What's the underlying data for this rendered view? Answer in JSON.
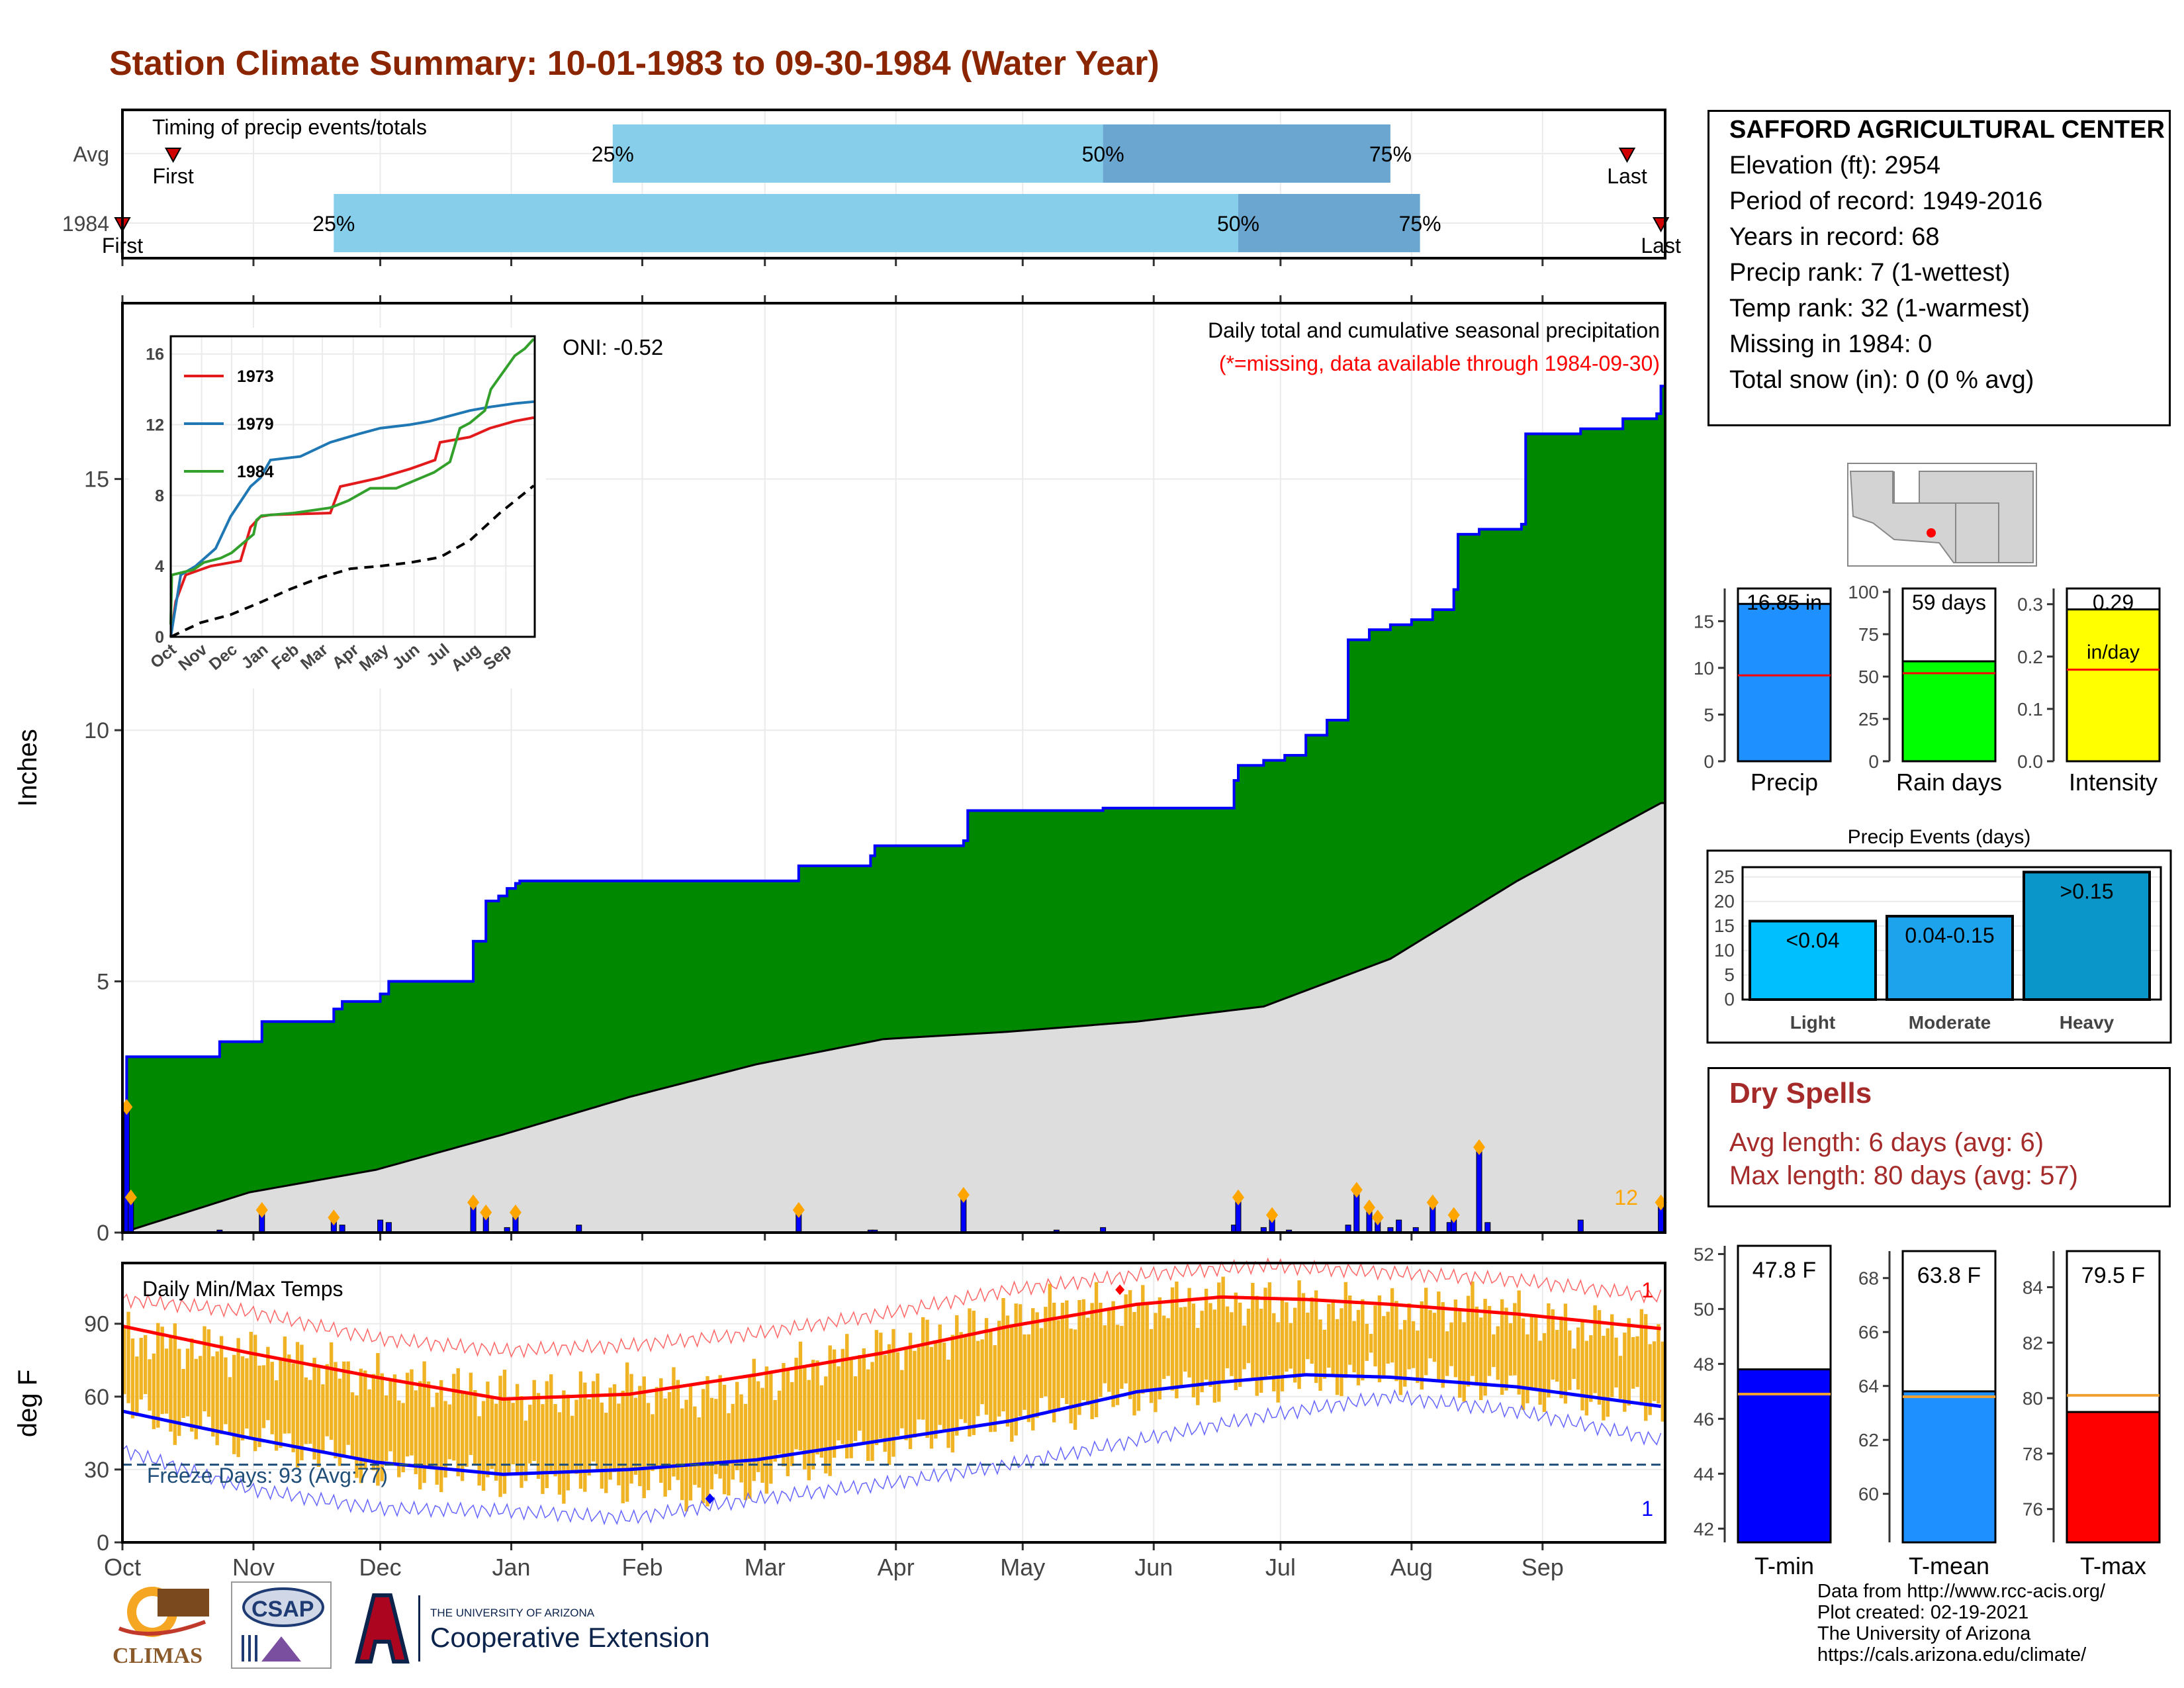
{
  "title": "Station Climate Summary: 10-01-1983 to 09-30-1984 (Water Year)",
  "colors": {
    "title": "#8b2500",
    "cum_fill": "#008800",
    "cum_line": "#0000ff",
    "normal_fill": "#dddddd",
    "daily_bar": "#0000ff",
    "marker": "#ffa500",
    "light_blue": "#87ceeb",
    "mid_blue": "#6aa6cf",
    "temp_bar": "#f0b323",
    "tmax_line": "#ff0000",
    "tmin_line": "#0000ff",
    "freeze": "#1f4e79",
    "dry_text": "#a52a2a",
    "precip_bar": "#1e90ff",
    "rain_bar": "#00ff00",
    "intensity_bar": "#ffff00"
  },
  "timing": {
    "title": "Timing of precip events/totals",
    "rows": [
      {
        "label": "Avg",
        "first_day": 12,
        "p25_day": 116,
        "p50_day": 232,
        "p75_day": 300,
        "last_day": 356,
        "first_label": "First",
        "last_label": "Last",
        "p25_label": "25%",
        "p50_label": "50%",
        "p75_label": "75%"
      },
      {
        "label": "1984",
        "first_day": 0,
        "p25_day": 50,
        "p50_day": 264,
        "p75_day": 307,
        "last_day": 364,
        "first_label": "First",
        "last_label": "Last",
        "p25_label": "25%",
        "p50_label": "50%",
        "p75_label": "75%"
      }
    ]
  },
  "precip_panel": {
    "ylabel": "Inches",
    "yticks": [
      0,
      5,
      10,
      15
    ],
    "ymax": 18.5,
    "caption1": "Daily total and cumulative seasonal precipitation",
    "caption2": "(*=missing, data available through 1984-09-30)",
    "oni": "ONI: -0.52",
    "count_label": "12"
  },
  "months": [
    "Oct",
    "Nov",
    "Dec",
    "Jan",
    "Feb",
    "Mar",
    "Apr",
    "May",
    "Jun",
    "Jul",
    "Aug",
    "Sep"
  ],
  "month_start_days": [
    0,
    31,
    61,
    92,
    123,
    152,
    183,
    213,
    244,
    274,
    305,
    336
  ],
  "chart_data": [
    {
      "type": "area",
      "name": "cumulative precipitation 1984",
      "x_days": [
        0,
        1,
        23,
        33,
        50,
        52,
        61,
        63,
        83,
        86,
        89,
        91,
        93,
        94,
        108,
        123,
        160,
        177,
        178,
        199,
        200,
        226,
        232,
        263,
        264,
        270,
        275,
        280,
        285,
        290,
        295,
        300,
        305,
        310,
        315,
        316,
        321,
        331,
        332,
        345,
        355,
        363,
        364
      ],
      "y_values": [
        0.7,
        3.5,
        3.8,
        4.2,
        4.45,
        4.6,
        4.75,
        5.0,
        5.8,
        6.6,
        6.7,
        6.85,
        6.95,
        7.0,
        7.0,
        7.0,
        7.3,
        7.5,
        7.7,
        7.8,
        8.4,
        8.4,
        8.45,
        9.0,
        9.3,
        9.4,
        9.5,
        9.9,
        10.2,
        11.8,
        12.0,
        12.1,
        12.2,
        12.4,
        12.8,
        13.9,
        14.0,
        14.1,
        15.9,
        16.0,
        16.2,
        16.3,
        16.85
      ]
    },
    {
      "type": "area",
      "name": "normal cumulative precipitation",
      "x_days": [
        0,
        30,
        60,
        90,
        120,
        150,
        180,
        210,
        240,
        270,
        300,
        330,
        364
      ],
      "y_values": [
        0.0,
        0.8,
        1.25,
        1.95,
        2.7,
        3.35,
        3.85,
        4.0,
        4.2,
        4.5,
        5.45,
        7.0,
        8.55
      ]
    },
    {
      "type": "bar",
      "name": "daily precipitation",
      "x_days": [
        1,
        2,
        23,
        33,
        50,
        52,
        61,
        63,
        83,
        86,
        91,
        93,
        108,
        160,
        177,
        178,
        199,
        221,
        232,
        263,
        264,
        270,
        272,
        276,
        290,
        292,
        295,
        297,
        300,
        302,
        306,
        310,
        314,
        315,
        321,
        323,
        345,
        364
      ],
      "y_values": [
        2.5,
        0.7,
        0.05,
        0.45,
        0.3,
        0.15,
        0.25,
        0.2,
        0.6,
        0.4,
        0.1,
        0.4,
        0.15,
        0.45,
        0.05,
        0.05,
        0.75,
        0.05,
        0.1,
        0.15,
        0.7,
        0.1,
        0.35,
        0.05,
        0.15,
        0.85,
        0.5,
        0.3,
        0.1,
        0.25,
        0.1,
        0.6,
        0.2,
        0.35,
        1.7,
        0.2,
        0.25,
        0.6
      ]
    },
    {
      "type": "line",
      "name": "inset cumulative precipitation comparison",
      "x_months": [
        "Oct",
        "Nov",
        "Dec",
        "Jan",
        "Feb",
        "Mar",
        "Apr",
        "May",
        "Jun",
        "Jul",
        "Aug",
        "Sep"
      ],
      "yticks": [
        0,
        4,
        8,
        12,
        16
      ],
      "series": [
        {
          "name": "1973",
          "color": "#e31a1c",
          "x_days": [
            0,
            5,
            15,
            40,
            70,
            80,
            90,
            100,
            160,
            170,
            210,
            240,
            265,
            270,
            300,
            320,
            345,
            364
          ],
          "y_values": [
            0,
            2.0,
            3.5,
            4.0,
            4.3,
            6.2,
            6.8,
            6.9,
            7.0,
            8.5,
            9.0,
            9.5,
            10.0,
            11.0,
            11.3,
            11.8,
            12.2,
            12.4
          ]
        },
        {
          "name": "1979",
          "color": "#1f78b4",
          "x_days": [
            0,
            10,
            25,
            45,
            60,
            80,
            90,
            100,
            130,
            160,
            190,
            210,
            240,
            260,
            280,
            300,
            320,
            345,
            364
          ],
          "y_values": [
            0,
            3.5,
            4.0,
            5.0,
            6.8,
            8.5,
            9.0,
            10.0,
            10.2,
            11.0,
            11.5,
            11.8,
            12.0,
            12.2,
            12.5,
            12.8,
            13.0,
            13.2,
            13.3
          ]
        },
        {
          "name": "1984",
          "color": "#33a02c",
          "x_days": [
            0,
            1,
            23,
            33,
            50,
            61,
            83,
            86,
            91,
            123,
            160,
            178,
            200,
            226,
            264,
            280,
            290,
            300,
            315,
            321,
            345,
            355,
            364
          ],
          "y_values": [
            0.7,
            3.5,
            3.8,
            4.2,
            4.45,
            4.75,
            5.8,
            6.6,
            6.85,
            7.0,
            7.3,
            7.7,
            8.4,
            8.4,
            9.3,
            9.9,
            11.8,
            12.1,
            12.8,
            14.0,
            15.9,
            16.3,
            16.85
          ]
        },
        {
          "name": "avg",
          "color": "#000000",
          "dashed": true,
          "x_days": [
            0,
            30,
            60,
            90,
            120,
            150,
            180,
            210,
            240,
            270,
            300,
            330,
            364
          ],
          "y_values": [
            0.0,
            0.8,
            1.25,
            1.95,
            2.7,
            3.35,
            3.85,
            4.0,
            4.2,
            4.5,
            5.45,
            7.0,
            8.55
          ]
        }
      ],
      "ymax": 17
    },
    {
      "type": "line",
      "name": "daily min/max temps",
      "title": "Daily Min/Max Temps",
      "ylabel": "deg F",
      "yticks": [
        0,
        30,
        60,
        90
      ],
      "ymin": 0,
      "ymax": 115,
      "freeze_line": 32,
      "freeze_label": "Freeze Days: 93 (Avg:77)",
      "record_high_count": "1",
      "record_low_count": "1",
      "normal_high": {
        "x_days": [
          0,
          30,
          60,
          90,
          120,
          150,
          180,
          210,
          240,
          260,
          280,
          300,
          330,
          364
        ],
        "y_values": [
          89,
          78,
          68,
          59,
          61,
          69,
          78,
          89,
          98,
          101,
          100,
          98,
          94,
          88
        ]
      },
      "normal_low": {
        "x_days": [
          0,
          30,
          60,
          90,
          120,
          150,
          180,
          210,
          240,
          260,
          280,
          300,
          330,
          364
        ],
        "y_values": [
          54,
          43,
          33,
          28,
          30,
          34,
          42,
          50,
          62,
          66,
          69,
          68,
          64,
          56
        ]
      },
      "record_high": {
        "x_days": [
          0,
          30,
          60,
          90,
          120,
          150,
          180,
          210,
          240,
          270,
          300,
          330,
          364
        ],
        "y_values": [
          100,
          95,
          84,
          79,
          81,
          86,
          94,
          104,
          110,
          114,
          111,
          108,
          101
        ]
      },
      "record_low": {
        "x_days": [
          0,
          30,
          60,
          90,
          120,
          150,
          180,
          210,
          240,
          270,
          300,
          330,
          364
        ],
        "y_values": [
          38,
          22,
          14,
          13,
          10,
          18,
          24,
          32,
          42,
          52,
          60,
          54,
          42
        ]
      },
      "obs_high": {
        "x_days": [
          0,
          20,
          40,
          60,
          80,
          100,
          120,
          140,
          160,
          180,
          200,
          220,
          240,
          260,
          280,
          300,
          320,
          340,
          364
        ],
        "y_values": [
          85,
          80,
          76,
          67,
          63,
          60,
          64,
          60,
          72,
          80,
          88,
          96,
          97,
          100,
          98,
          95,
          97,
          90,
          86
        ]
      },
      "obs_low": {
        "x_days": [
          0,
          20,
          40,
          60,
          80,
          100,
          120,
          140,
          160,
          180,
          200,
          220,
          240,
          260,
          280,
          300,
          320,
          340,
          364
        ],
        "y_values": [
          55,
          45,
          40,
          30,
          28,
          25,
          24,
          20,
          32,
          40,
          47,
          53,
          60,
          65,
          67,
          70,
          65,
          60,
          55
        ]
      },
      "record_high_marker": {
        "x_day": 236,
        "y_value": 104
      },
      "record_low_marker": {
        "x_day": 139,
        "y_value": 18
      }
    },
    {
      "type": "bar",
      "name": "precip summary",
      "categories": [
        "Precip",
        "Rain days",
        "Intensity"
      ],
      "labels": [
        "16.85 in",
        "59 days",
        "0.29"
      ],
      "sublabel": "in/day",
      "values": [
        16.85,
        59,
        0.29
      ],
      "normals": [
        9.2,
        52,
        0.175
      ],
      "ymax": [
        18.5,
        102,
        0.33
      ],
      "yticks": [
        [
          0,
          5,
          10,
          15
        ],
        [
          0,
          25,
          50,
          75,
          100
        ],
        [
          0.0,
          0.1,
          0.2,
          0.3
        ]
      ]
    },
    {
      "type": "bar",
      "name": "precip events",
      "title": "Precip Events (days)",
      "categories": [
        "Light",
        "Moderate",
        "Heavy"
      ],
      "labels": [
        "<0.04",
        "0.04-0.15",
        ">0.15"
      ],
      "values": [
        16,
        17,
        26
      ],
      "yticks": [
        0,
        5,
        10,
        15,
        20,
        25
      ],
      "ymax": 27
    },
    {
      "type": "bar",
      "name": "temperature summary",
      "categories": [
        "T-min",
        "T-mean",
        "T-max"
      ],
      "labels": [
        "47.8 F",
        "63.8 F",
        "79.5 F"
      ],
      "values": [
        47.8,
        63.8,
        79.5
      ],
      "normals": [
        46.9,
        63.6,
        80.1
      ],
      "ranges": [
        [
          41.5,
          52.3
        ],
        [
          58.2,
          69.0
        ],
        [
          74.8,
          85.3
        ]
      ],
      "yticks": [
        [
          42,
          44,
          46,
          48,
          50,
          52
        ],
        [
          60,
          62,
          64,
          66,
          68
        ],
        [
          76,
          78,
          80,
          82,
          84
        ]
      ]
    }
  ],
  "station": {
    "name": "SAFFORD AGRICULTURAL CENTER",
    "lines": [
      "Elevation (ft): 2954",
      "Period of record: 1949-2016",
      "Years in record: 68",
      "Precip rank: 7 (1-wettest)",
      "Temp rank: 32 (1-warmest)",
      "Missing in 1984: 0",
      "Total snow (in): 0 (0 % avg)"
    ]
  },
  "dry_spells": {
    "title": "Dry Spells",
    "avg": "Avg length: 6 days (avg: 6)",
    "max": "Max length: 80 days (avg: 57)"
  },
  "credits": [
    "Data from http://www.rcc-acis.org/",
    "Plot created: 02-19-2021",
    "The University of Arizona",
    "https://cals.arizona.edu/climate/"
  ],
  "logos": {
    "climas": "CLIMAS",
    "csap": "CSAP",
    "ua_small": "THE UNIVERSITY OF ARIZONA",
    "ua_big": "Cooperative Extension"
  }
}
